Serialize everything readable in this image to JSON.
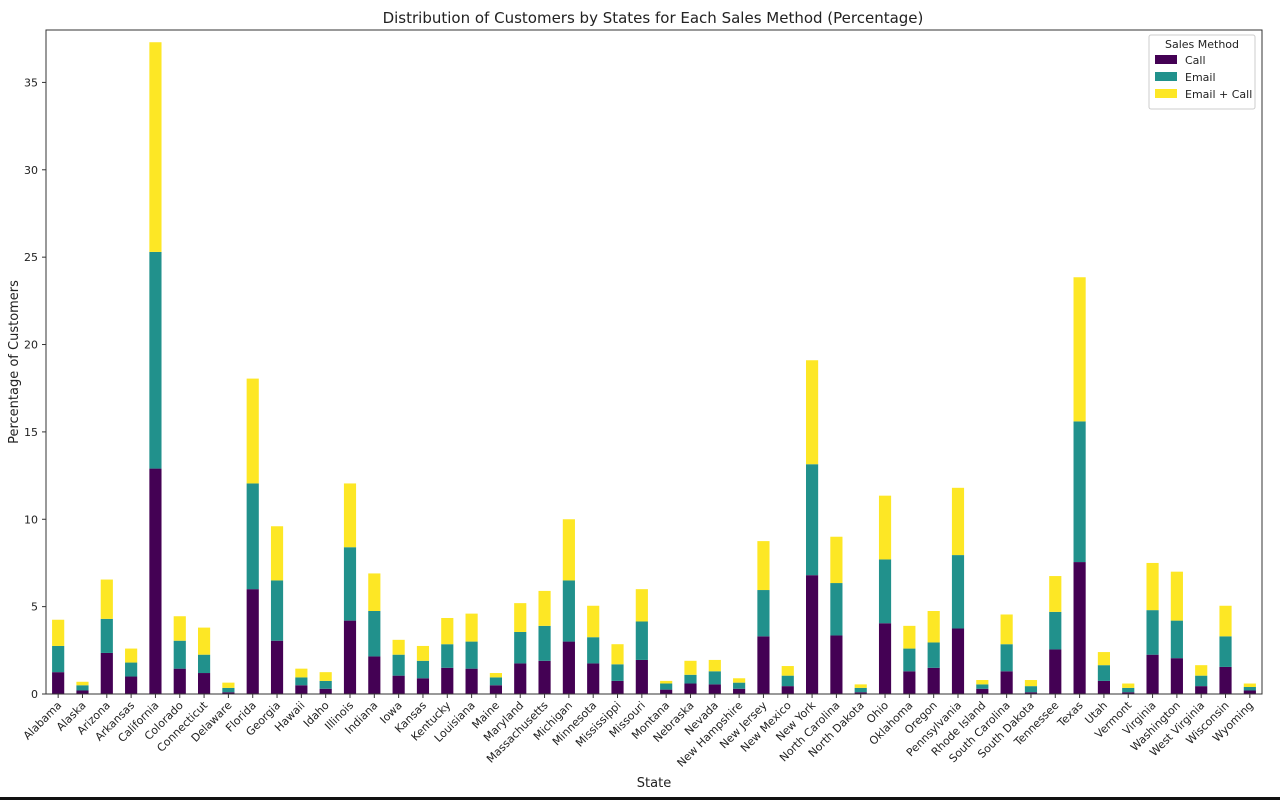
{
  "chart_data": {
    "type": "bar",
    "stacked": true,
    "title": "Distribution of Customers by States for Each Sales Method (Percentage)",
    "xlabel": "State",
    "ylabel": "Percentage of Customers",
    "ylim": [
      0,
      38
    ],
    "yticks": [
      0,
      5,
      10,
      15,
      20,
      25,
      30,
      35
    ],
    "grid": false,
    "legend": {
      "title": "Sales Method",
      "position": "top-right"
    },
    "categories": [
      "Alabama",
      "Alaska",
      "Arizona",
      "Arkansas",
      "California",
      "Colorado",
      "Connecticut",
      "Delaware",
      "Florida",
      "Georgia",
      "Hawaii",
      "Idaho",
      "Illinois",
      "Indiana",
      "Iowa",
      "Kansas",
      "Kentucky",
      "Louisiana",
      "Maine",
      "Maryland",
      "Massachusetts",
      "Michigan",
      "Minnesota",
      "Mississippi",
      "Missouri",
      "Montana",
      "Nebraska",
      "Nevada",
      "New Hampshire",
      "New Jersey",
      "New Mexico",
      "New York",
      "North Carolina",
      "North Dakota",
      "Ohio",
      "Oklahoma",
      "Oregon",
      "Pennsylvania",
      "Rhode Island",
      "South Carolina",
      "South Dakota",
      "Tennessee",
      "Texas",
      "Utah",
      "Vermont",
      "Virginia",
      "Washington",
      "West Virginia",
      "Wisconsin",
      "Wyoming"
    ],
    "series": [
      {
        "name": "Call",
        "color": "#440154",
        "values": [
          1.25,
          0.2,
          2.35,
          1.0,
          12.9,
          1.45,
          1.2,
          0.1,
          6.0,
          3.05,
          0.5,
          0.3,
          4.2,
          2.15,
          1.05,
          0.9,
          1.5,
          1.45,
          0.5,
          1.75,
          1.9,
          3.0,
          1.75,
          0.75,
          1.95,
          0.25,
          0.6,
          0.55,
          0.3,
          3.3,
          0.45,
          6.8,
          3.35,
          0.1,
          4.05,
          1.3,
          1.5,
          3.75,
          0.3,
          1.3,
          0.1,
          2.55,
          7.55,
          0.75,
          0.1,
          2.25,
          2.05,
          0.45,
          1.55,
          0.2
        ]
      },
      {
        "name": "Email",
        "color": "#21918c",
        "values": [
          1.5,
          0.3,
          1.95,
          0.8,
          12.4,
          1.6,
          1.05,
          0.25,
          6.05,
          3.45,
          0.45,
          0.45,
          4.2,
          2.6,
          1.2,
          1.0,
          1.35,
          1.55,
          0.45,
          1.8,
          2.0,
          3.5,
          1.5,
          0.95,
          2.2,
          0.35,
          0.5,
          0.75,
          0.35,
          2.65,
          0.6,
          6.35,
          3.0,
          0.25,
          3.65,
          1.3,
          1.45,
          4.2,
          0.25,
          1.55,
          0.35,
          2.15,
          8.05,
          0.9,
          0.25,
          2.55,
          2.15,
          0.6,
          1.75,
          0.2
        ]
      },
      {
        "name": "Email + Call",
        "color": "#fde725",
        "values": [
          1.5,
          0.2,
          2.25,
          0.8,
          12.0,
          1.4,
          1.55,
          0.3,
          6.0,
          3.1,
          0.5,
          0.5,
          3.65,
          2.15,
          0.85,
          0.85,
          1.5,
          1.6,
          0.25,
          1.65,
          2.0,
          3.5,
          1.8,
          1.15,
          1.85,
          0.15,
          0.8,
          0.65,
          0.25,
          2.8,
          0.55,
          5.95,
          2.65,
          0.2,
          3.65,
          1.3,
          1.8,
          3.85,
          0.25,
          1.7,
          0.35,
          2.05,
          8.25,
          0.75,
          0.25,
          2.7,
          2.8,
          0.6,
          1.75,
          0.2
        ]
      }
    ]
  }
}
